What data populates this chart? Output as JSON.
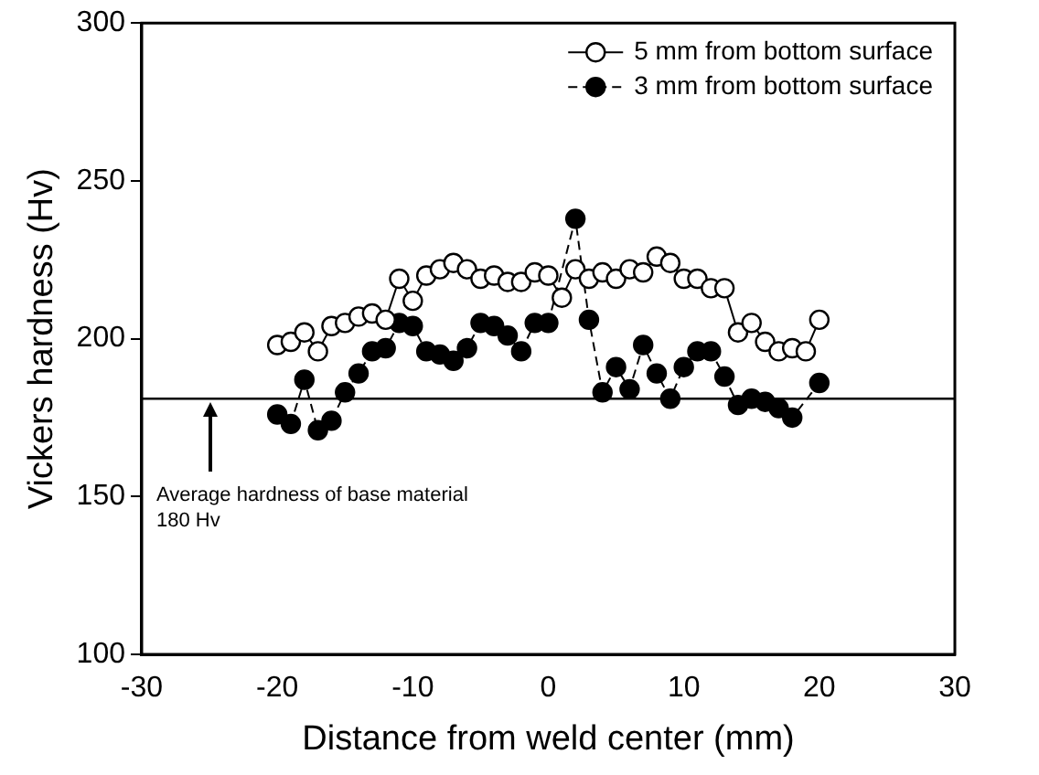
{
  "chart_data": {
    "type": "line",
    "xlabel": "Distance from weld center (mm)",
    "ylabel": "Vickers hardness (Hv)",
    "xlim": [
      -30,
      30
    ],
    "xticks": [
      -30,
      -20,
      -10,
      0,
      10,
      20,
      30
    ],
    "ylim": [
      100,
      300
    ],
    "yticks": [
      100,
      150,
      200,
      250,
      300
    ],
    "grid": false,
    "legend": "top right",
    "series": [
      {
        "name": "5 mm from bottom surface",
        "color": "#000000",
        "marker": "circle-open",
        "line_style": "solid",
        "x": [
          -20,
          -19,
          -18,
          -17,
          -16,
          -15,
          -14,
          -13,
          -12,
          -11,
          -10,
          -9,
          -8,
          -7,
          -6,
          -5,
          -4,
          -3,
          -2,
          -1,
          0,
          1,
          2,
          3,
          4,
          5,
          6,
          7,
          8,
          9,
          10,
          11,
          12,
          13,
          14,
          15,
          16,
          17,
          18,
          19,
          20
        ],
        "values": [
          198,
          199,
          202,
          196,
          204,
          205,
          207,
          208,
          206,
          219,
          212,
          220,
          222,
          224,
          222,
          219,
          220,
          218,
          218,
          221,
          220,
          213,
          222,
          219,
          221,
          219,
          222,
          221,
          226,
          224,
          219,
          219,
          216,
          216,
          202,
          205,
          199,
          196,
          197,
          196,
          206
        ]
      },
      {
        "name": "3 mm from bottom surface",
        "color": "#000000",
        "marker": "circle",
        "line_style": "dashed",
        "x": [
          -20,
          -19,
          -18,
          -17,
          -16,
          -15,
          -14,
          -13,
          -12,
          -11,
          -10,
          -9,
          -8,
          -7,
          -6,
          -5,
          -4,
          -3,
          -2,
          -1,
          0,
          2,
          3,
          4,
          5,
          6,
          7,
          8,
          9,
          10,
          11,
          12,
          13,
          14,
          15,
          16,
          17,
          18,
          20
        ],
        "values": [
          176,
          173,
          187,
          171,
          174,
          183,
          189,
          196,
          197,
          205,
          204,
          196,
          195,
          193,
          197,
          205,
          204,
          201,
          196,
          205,
          205,
          238,
          206,
          183,
          191,
          184,
          198,
          189,
          181,
          191,
          196,
          196,
          188,
          179,
          181,
          180,
          178,
          175,
          186
        ]
      }
    ],
    "ref_lines": [
      {
        "axis": "y",
        "value": 181,
        "color": "#000000"
      }
    ],
    "annotations": [
      "Average hardness of base material\n180 Hv"
    ]
  }
}
